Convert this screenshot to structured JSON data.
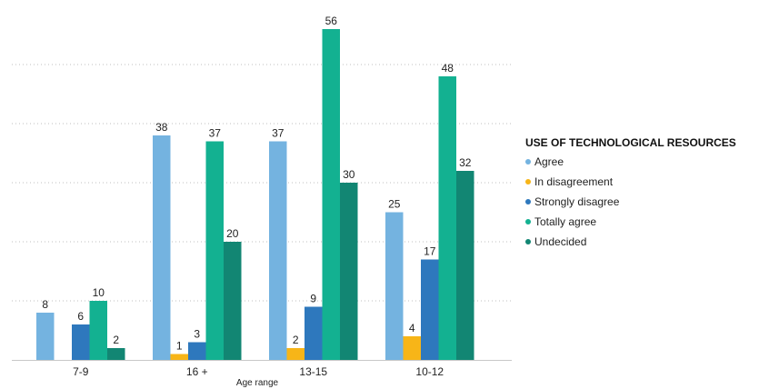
{
  "chart_data": {
    "type": "bar",
    "categories": [
      "7-9",
      "16 +",
      "13-15",
      "10-12"
    ],
    "series": [
      {
        "name": "Agree",
        "color": "#74b3e0",
        "values": [
          8,
          38,
          37,
          25
        ]
      },
      {
        "name": "In disagreement",
        "color": "#f7b518",
        "values": [
          null,
          1,
          2,
          4
        ]
      },
      {
        "name": "Strongly disagree",
        "color": "#2e78bd",
        "values": [
          6,
          3,
          9,
          17
        ]
      },
      {
        "name": "Totally agree",
        "color": "#13b191",
        "values": [
          10,
          37,
          56,
          48
        ]
      },
      {
        "name": "Undecided",
        "color": "#128673",
        "values": [
          2,
          20,
          30,
          32
        ]
      }
    ],
    "title": "",
    "xlabel": "Age range",
    "ylabel": "",
    "ylim": [
      0,
      60
    ],
    "grid": true,
    "legend_title": "USE OF TECHNOLOGICAL RESOURCES",
    "legend_position": "right"
  }
}
